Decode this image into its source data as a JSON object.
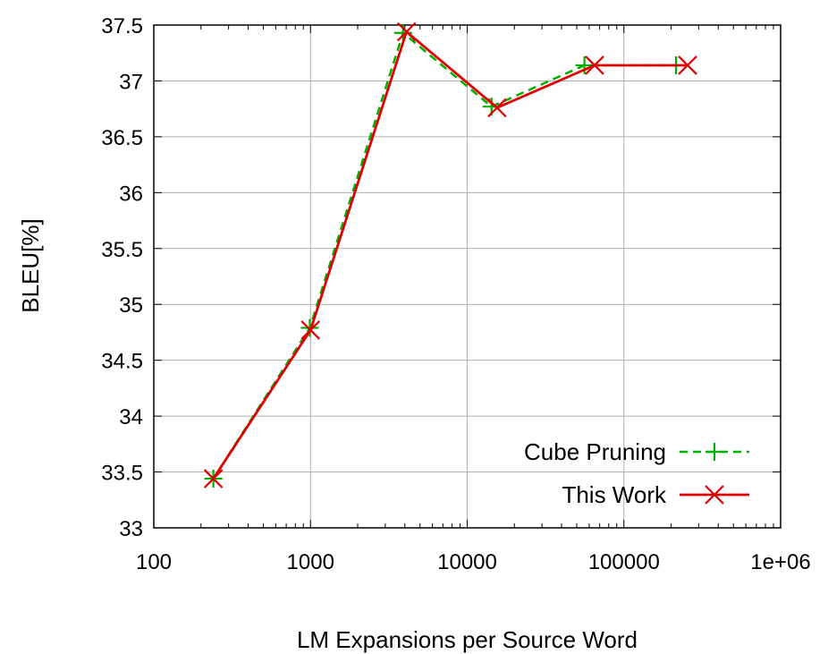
{
  "chart_data": {
    "type": "line",
    "xlabel": "LM Expansions per Source Word",
    "ylabel": "BLEU[%]",
    "x_scale": "log",
    "xlim": [
      100,
      1000000
    ],
    "ylim": [
      33,
      37.5
    ],
    "x_ticks": [
      100,
      1000,
      10000,
      100000,
      1000000
    ],
    "x_tick_labels": [
      "100",
      "1000",
      "10000",
      "100000",
      "1e+06"
    ],
    "y_ticks": [
      33,
      33.5,
      34,
      34.5,
      35,
      35.5,
      36,
      36.5,
      37,
      37.5
    ],
    "y_tick_labels": [
      "33",
      "33.5",
      "34",
      "34.5",
      "35",
      "35.5",
      "36",
      "36.5",
      "37",
      "37.5"
    ],
    "grid": true,
    "legend_position": "bottom-right",
    "series": [
      {
        "name": "Cube Pruning",
        "color": "#00b000",
        "line_style": "dashed",
        "marker": "plus",
        "x": [
          240,
          990,
          3900,
          14300,
          56000,
          215000
        ],
        "y": [
          33.44,
          34.79,
          37.43,
          36.77,
          37.14,
          37.14
        ]
      },
      {
        "name": "This Work",
        "color": "#e00000",
        "line_style": "solid",
        "marker": "cross",
        "x": [
          240,
          1000,
          4100,
          15500,
          65000,
          255000
        ],
        "y": [
          33.44,
          34.77,
          37.44,
          36.76,
          37.14,
          37.14
        ]
      }
    ]
  }
}
